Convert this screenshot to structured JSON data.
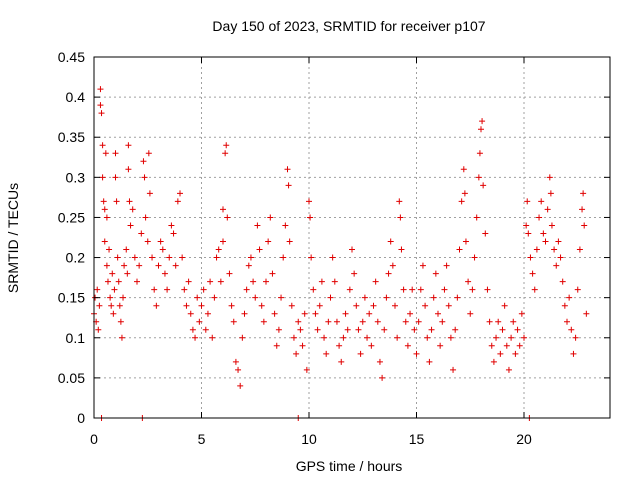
{
  "chart_data": {
    "type": "scatter",
    "title": "Day 150 of 2023, SRMTID for receiver p107",
    "xlabel": "GPS time / hours",
    "ylabel": "SRMTID / TECUs",
    "xlim": [
      0,
      24
    ],
    "ylim": [
      0,
      0.45
    ],
    "xticks": [
      0,
      5,
      10,
      15,
      20
    ],
    "yticks": [
      0,
      0.05,
      0.1,
      0.15,
      0.2,
      0.25,
      0.3,
      0.35,
      0.4,
      0.45
    ],
    "xtick_labels": [
      "0",
      "5",
      "10",
      "15",
      "20"
    ],
    "ytick_labels": [
      "0",
      "0.05",
      "0.1",
      "0.15",
      "0.2",
      "0.25",
      "0.3",
      "0.35",
      "0.4",
      "0.45"
    ],
    "grid": true,
    "marker": "+",
    "color": "#e00000",
    "series": [
      {
        "name": "SRMTID",
        "points": [
          [
            0.0,
            0.13
          ],
          [
            0.05,
            0.15
          ],
          [
            0.1,
            0.12
          ],
          [
            0.15,
            0.16
          ],
          [
            0.2,
            0.11
          ],
          [
            0.25,
            0.14
          ],
          [
            0.3,
            0.41
          ],
          [
            0.3,
            0.39
          ],
          [
            0.35,
            0.38
          ],
          [
            0.4,
            0.34
          ],
          [
            0.4,
            0.3
          ],
          [
            0.45,
            0.27
          ],
          [
            0.5,
            0.22
          ],
          [
            0.5,
            0.26
          ],
          [
            0.55,
            0.33
          ],
          [
            0.6,
            0.25
          ],
          [
            0.6,
            0.19
          ],
          [
            0.65,
            0.17
          ],
          [
            0.7,
            0.21
          ],
          [
            0.75,
            0.15
          ],
          [
            0.8,
            0.14
          ],
          [
            0.85,
            0.18
          ],
          [
            0.9,
            0.13
          ],
          [
            0.95,
            0.16
          ],
          [
            1.0,
            0.3
          ],
          [
            1.0,
            0.33
          ],
          [
            1.05,
            0.27
          ],
          [
            1.1,
            0.2
          ],
          [
            1.15,
            0.17
          ],
          [
            1.2,
            0.14
          ],
          [
            1.25,
            0.12
          ],
          [
            1.3,
            0.1
          ],
          [
            1.35,
            0.15
          ],
          [
            1.4,
            0.19
          ],
          [
            1.5,
            0.21
          ],
          [
            1.55,
            0.18
          ],
          [
            1.6,
            0.34
          ],
          [
            1.6,
            0.31
          ],
          [
            1.65,
            0.27
          ],
          [
            1.7,
            0.24
          ],
          [
            1.8,
            0.26
          ],
          [
            1.9,
            0.2
          ],
          [
            2.0,
            0.17
          ],
          [
            2.1,
            0.19
          ],
          [
            2.2,
            0.23
          ],
          [
            2.3,
            0.32
          ],
          [
            2.35,
            0.3
          ],
          [
            2.4,
            0.25
          ],
          [
            2.5,
            0.22
          ],
          [
            2.55,
            0.33
          ],
          [
            2.6,
            0.28
          ],
          [
            2.7,
            0.2
          ],
          [
            2.8,
            0.16
          ],
          [
            2.9,
            0.14
          ],
          [
            3.0,
            0.19
          ],
          [
            3.1,
            0.22
          ],
          [
            3.2,
            0.21
          ],
          [
            3.3,
            0.18
          ],
          [
            3.4,
            0.16
          ],
          [
            3.5,
            0.2
          ],
          [
            3.6,
            0.24
          ],
          [
            3.7,
            0.23
          ],
          [
            3.8,
            0.19
          ],
          [
            3.9,
            0.27
          ],
          [
            4.0,
            0.28
          ],
          [
            4.1,
            0.2
          ],
          [
            4.2,
            0.16
          ],
          [
            4.3,
            0.14
          ],
          [
            4.4,
            0.17
          ],
          [
            4.5,
            0.13
          ],
          [
            4.6,
            0.11
          ],
          [
            4.7,
            0.1
          ],
          [
            4.8,
            0.15
          ],
          [
            4.9,
            0.12
          ],
          [
            5.0,
            0.14
          ],
          [
            5.1,
            0.16
          ],
          [
            5.2,
            0.11
          ],
          [
            5.3,
            0.13
          ],
          [
            5.4,
            0.17
          ],
          [
            5.5,
            0.1
          ],
          [
            5.6,
            0.15
          ],
          [
            5.7,
            0.2
          ],
          [
            5.8,
            0.21
          ],
          [
            5.9,
            0.17
          ],
          [
            6.0,
            0.22
          ],
          [
            6.0,
            0.26
          ],
          [
            6.1,
            0.33
          ],
          [
            6.15,
            0.34
          ],
          [
            6.2,
            0.25
          ],
          [
            6.3,
            0.18
          ],
          [
            6.4,
            0.14
          ],
          [
            6.5,
            0.12
          ],
          [
            6.6,
            0.07
          ],
          [
            6.7,
            0.06
          ],
          [
            6.8,
            0.04
          ],
          [
            6.9,
            0.1
          ],
          [
            7.0,
            0.13
          ],
          [
            7.1,
            0.16
          ],
          [
            7.2,
            0.19
          ],
          [
            7.3,
            0.2
          ],
          [
            7.4,
            0.17
          ],
          [
            7.5,
            0.15
          ],
          [
            7.6,
            0.24
          ],
          [
            7.7,
            0.21
          ],
          [
            7.8,
            0.14
          ],
          [
            7.9,
            0.12
          ],
          [
            8.0,
            0.17
          ],
          [
            8.1,
            0.22
          ],
          [
            8.2,
            0.25
          ],
          [
            8.3,
            0.18
          ],
          [
            8.4,
            0.13
          ],
          [
            8.5,
            0.09
          ],
          [
            8.6,
            0.11
          ],
          [
            8.7,
            0.15
          ],
          [
            8.8,
            0.2
          ],
          [
            8.9,
            0.24
          ],
          [
            9.0,
            0.31
          ],
          [
            9.05,
            0.29
          ],
          [
            9.1,
            0.22
          ],
          [
            9.2,
            0.14
          ],
          [
            9.3,
            0.1
          ],
          [
            9.4,
            0.08
          ],
          [
            9.5,
            0.12
          ],
          [
            9.6,
            0.11
          ],
          [
            9.7,
            0.09
          ],
          [
            9.8,
            0.13
          ],
          [
            9.9,
            0.06
          ],
          [
            10.0,
            0.27
          ],
          [
            10.05,
            0.25
          ],
          [
            10.1,
            0.2
          ],
          [
            10.2,
            0.16
          ],
          [
            10.3,
            0.13
          ],
          [
            10.4,
            0.11
          ],
          [
            10.5,
            0.14
          ],
          [
            10.6,
            0.17
          ],
          [
            10.7,
            0.1
          ],
          [
            10.8,
            0.08
          ],
          [
            10.9,
            0.12
          ],
          [
            11.0,
            0.15
          ],
          [
            11.1,
            0.2
          ],
          [
            11.2,
            0.17
          ],
          [
            11.3,
            0.12
          ],
          [
            11.4,
            0.09
          ],
          [
            11.5,
            0.07
          ],
          [
            11.6,
            0.1
          ],
          [
            11.7,
            0.13
          ],
          [
            11.8,
            0.11
          ],
          [
            11.9,
            0.16
          ],
          [
            12.0,
            0.21
          ],
          [
            12.1,
            0.18
          ],
          [
            12.2,
            0.14
          ],
          [
            12.3,
            0.11
          ],
          [
            12.4,
            0.08
          ],
          [
            12.5,
            0.12
          ],
          [
            12.6,
            0.15
          ],
          [
            12.7,
            0.1
          ],
          [
            12.8,
            0.13
          ],
          [
            12.9,
            0.09
          ],
          [
            13.0,
            0.14
          ],
          [
            13.1,
            0.17
          ],
          [
            13.2,
            0.12
          ],
          [
            13.3,
            0.07
          ],
          [
            13.4,
            0.05
          ],
          [
            13.5,
            0.11
          ],
          [
            13.6,
            0.15
          ],
          [
            13.7,
            0.18
          ],
          [
            13.8,
            0.22
          ],
          [
            13.9,
            0.19
          ],
          [
            14.0,
            0.14
          ],
          [
            14.1,
            0.1
          ],
          [
            14.2,
            0.27
          ],
          [
            14.25,
            0.25
          ],
          [
            14.3,
            0.21
          ],
          [
            14.4,
            0.16
          ],
          [
            14.5,
            0.12
          ],
          [
            14.6,
            0.09
          ],
          [
            14.7,
            0.13
          ],
          [
            14.8,
            0.16
          ],
          [
            14.9,
            0.11
          ],
          [
            15.0,
            0.08
          ],
          [
            15.1,
            0.12
          ],
          [
            15.2,
            0.16
          ],
          [
            15.3,
            0.19
          ],
          [
            15.4,
            0.14
          ],
          [
            15.5,
            0.1
          ],
          [
            15.6,
            0.07
          ],
          [
            15.7,
            0.11
          ],
          [
            15.8,
            0.15
          ],
          [
            15.9,
            0.18
          ],
          [
            16.0,
            0.13
          ],
          [
            16.1,
            0.09
          ],
          [
            16.2,
            0.12
          ],
          [
            16.3,
            0.16
          ],
          [
            16.4,
            0.19
          ],
          [
            16.5,
            0.14
          ],
          [
            16.6,
            0.1
          ],
          [
            16.7,
            0.06
          ],
          [
            16.8,
            0.11
          ],
          [
            16.9,
            0.15
          ],
          [
            17.0,
            0.21
          ],
          [
            17.1,
            0.27
          ],
          [
            17.2,
            0.31
          ],
          [
            17.25,
            0.28
          ],
          [
            17.3,
            0.22
          ],
          [
            17.4,
            0.17
          ],
          [
            17.5,
            0.13
          ],
          [
            17.6,
            0.16
          ],
          [
            17.7,
            0.2
          ],
          [
            17.8,
            0.25
          ],
          [
            17.9,
            0.3
          ],
          [
            17.95,
            0.33
          ],
          [
            18.0,
            0.36
          ],
          [
            18.05,
            0.37
          ],
          [
            18.1,
            0.29
          ],
          [
            18.2,
            0.23
          ],
          [
            18.3,
            0.16
          ],
          [
            18.4,
            0.12
          ],
          [
            18.5,
            0.09
          ],
          [
            18.6,
            0.07
          ],
          [
            18.7,
            0.1
          ],
          [
            18.8,
            0.12
          ],
          [
            18.9,
            0.08
          ],
          [
            19.0,
            0.11
          ],
          [
            19.1,
            0.14
          ],
          [
            19.2,
            0.09
          ],
          [
            19.3,
            0.06
          ],
          [
            19.4,
            0.1
          ],
          [
            19.5,
            0.12
          ],
          [
            19.6,
            0.08
          ],
          [
            19.7,
            0.11
          ],
          [
            19.8,
            0.09
          ],
          [
            19.9,
            0.13
          ],
          [
            20.0,
            0.1
          ],
          [
            20.1,
            0.24
          ],
          [
            20.15,
            0.27
          ],
          [
            20.2,
            0.23
          ],
          [
            20.3,
            0.2
          ],
          [
            20.4,
            0.18
          ],
          [
            20.5,
            0.16
          ],
          [
            20.6,
            0.21
          ],
          [
            20.7,
            0.25
          ],
          [
            20.8,
            0.27
          ],
          [
            20.9,
            0.23
          ],
          [
            21.0,
            0.22
          ],
          [
            21.1,
            0.26
          ],
          [
            21.2,
            0.3
          ],
          [
            21.25,
            0.28
          ],
          [
            21.3,
            0.24
          ],
          [
            21.4,
            0.21
          ],
          [
            21.5,
            0.19
          ],
          [
            21.6,
            0.22
          ],
          [
            21.7,
            0.2
          ],
          [
            21.8,
            0.17
          ],
          [
            21.9,
            0.14
          ],
          [
            22.0,
            0.12
          ],
          [
            22.1,
            0.15
          ],
          [
            22.2,
            0.11
          ],
          [
            22.3,
            0.08
          ],
          [
            22.4,
            0.1
          ],
          [
            22.5,
            0.16
          ],
          [
            22.6,
            0.21
          ],
          [
            22.7,
            0.26
          ],
          [
            22.75,
            0.28
          ],
          [
            22.8,
            0.24
          ],
          [
            22.9,
            0.13
          ],
          [
            0.35,
            0.0
          ],
          [
            2.25,
            0.0
          ],
          [
            9.5,
            0.0
          ],
          [
            20.25,
            0.0
          ]
        ]
      }
    ]
  }
}
